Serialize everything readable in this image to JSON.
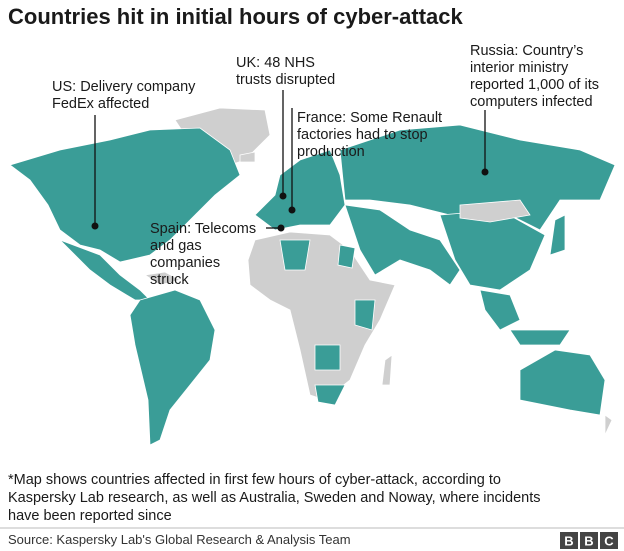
{
  "title": "Countries hit in initial hours of cyber-attack",
  "annotations": [
    {
      "lines": [
        "US: Delivery company",
        "FedEx affected"
      ]
    },
    {
      "lines": [
        "UK: 48 NHS",
        "trusts disrupted"
      ]
    },
    {
      "lines": [
        "France: Some Renault",
        "factories had to stop",
        "production"
      ]
    },
    {
      "lines": [
        "Spain: Telecoms",
        "and gas",
        "companies",
        "struck"
      ]
    },
    {
      "lines": [
        "Russia: Country’s",
        "interior ministry",
        "reported 1,000 of its",
        "computers infected"
      ]
    }
  ],
  "footnote": [
    "*Map shows countries affected in first few hours of cyber-attack, according to",
    "Kaspersky Lab research, as well as Australia, Sweden and Noway, where incidents",
    "have been reported since"
  ],
  "source": "Source: Kaspersky Lab's Global Research & Analysis Team",
  "logo": [
    "B",
    "B",
    "C"
  ]
}
